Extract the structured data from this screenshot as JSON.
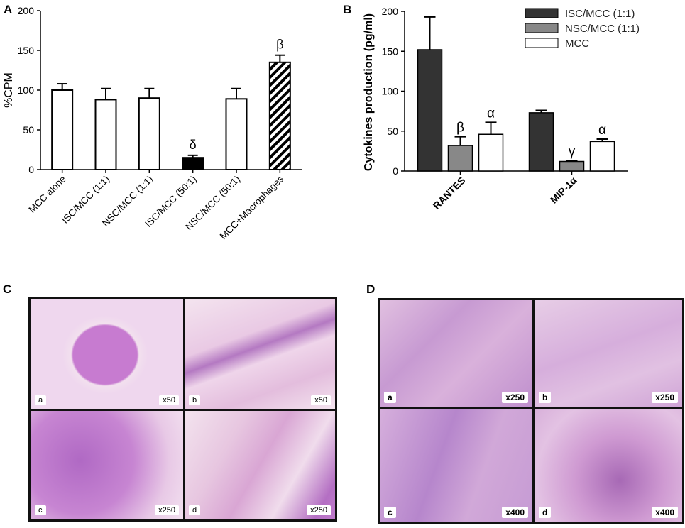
{
  "panels": {
    "a": "A",
    "b": "B",
    "c": "C",
    "d": "D"
  },
  "chart_data": [
    {
      "type": "bar",
      "ylabel": "%CPM",
      "ylim": [
        0,
        200
      ],
      "yticks": [
        0,
        50,
        100,
        150,
        200
      ],
      "categories": [
        "MCC alone",
        "ISC/MCC (1:1)",
        "NSC/MCC (1:1)",
        "ISC/MCC (50:1)",
        "NSC/MCC (50:1)",
        "MCC+Macrophages"
      ],
      "values": [
        100,
        88,
        90,
        15,
        89,
        135
      ],
      "errors": [
        8,
        14,
        12,
        3,
        13,
        9
      ],
      "fills": [
        "#ffffff",
        "#ffffff",
        "#ffffff",
        "#000000",
        "#ffffff",
        "hatch"
      ],
      "annotations": [
        "",
        "",
        "",
        "δ",
        "",
        "β"
      ],
      "grid": false
    },
    {
      "type": "bar",
      "ylabel": "Cytokines production (pg/ml)",
      "ylim": [
        0,
        200
      ],
      "yticks": [
        0,
        50,
        100,
        150,
        200
      ],
      "categories": [
        "RANTES",
        "MIP-1α"
      ],
      "series": [
        {
          "name": "ISC/MCC (1:1)",
          "color": "#333333",
          "values": [
            152,
            73
          ],
          "errors": [
            41,
            3
          ],
          "annotations": [
            "",
            ""
          ]
        },
        {
          "name": "NSC/MCC (1:1)",
          "color": "#888888",
          "values": [
            32,
            12
          ],
          "errors": [
            11,
            1
          ],
          "annotations": [
            "β",
            "γ"
          ]
        },
        {
          "name": "MCC",
          "color": "#ffffff",
          "values": [
            46,
            37
          ],
          "errors": [
            15,
            3
          ],
          "annotations": [
            "α",
            "α"
          ]
        }
      ],
      "legend": "top-right",
      "grid": false
    }
  ],
  "micrographs_c": [
    {
      "letter": "a",
      "mag": "x50"
    },
    {
      "letter": "b",
      "mag": "x50"
    },
    {
      "letter": "c",
      "mag": "x250"
    },
    {
      "letter": "d",
      "mag": "x250"
    }
  ],
  "micrographs_d": [
    {
      "letter": "a",
      "mag": "x250"
    },
    {
      "letter": "b",
      "mag": "x250"
    },
    {
      "letter": "c",
      "mag": "x400"
    },
    {
      "letter": "d",
      "mag": "x400"
    }
  ]
}
